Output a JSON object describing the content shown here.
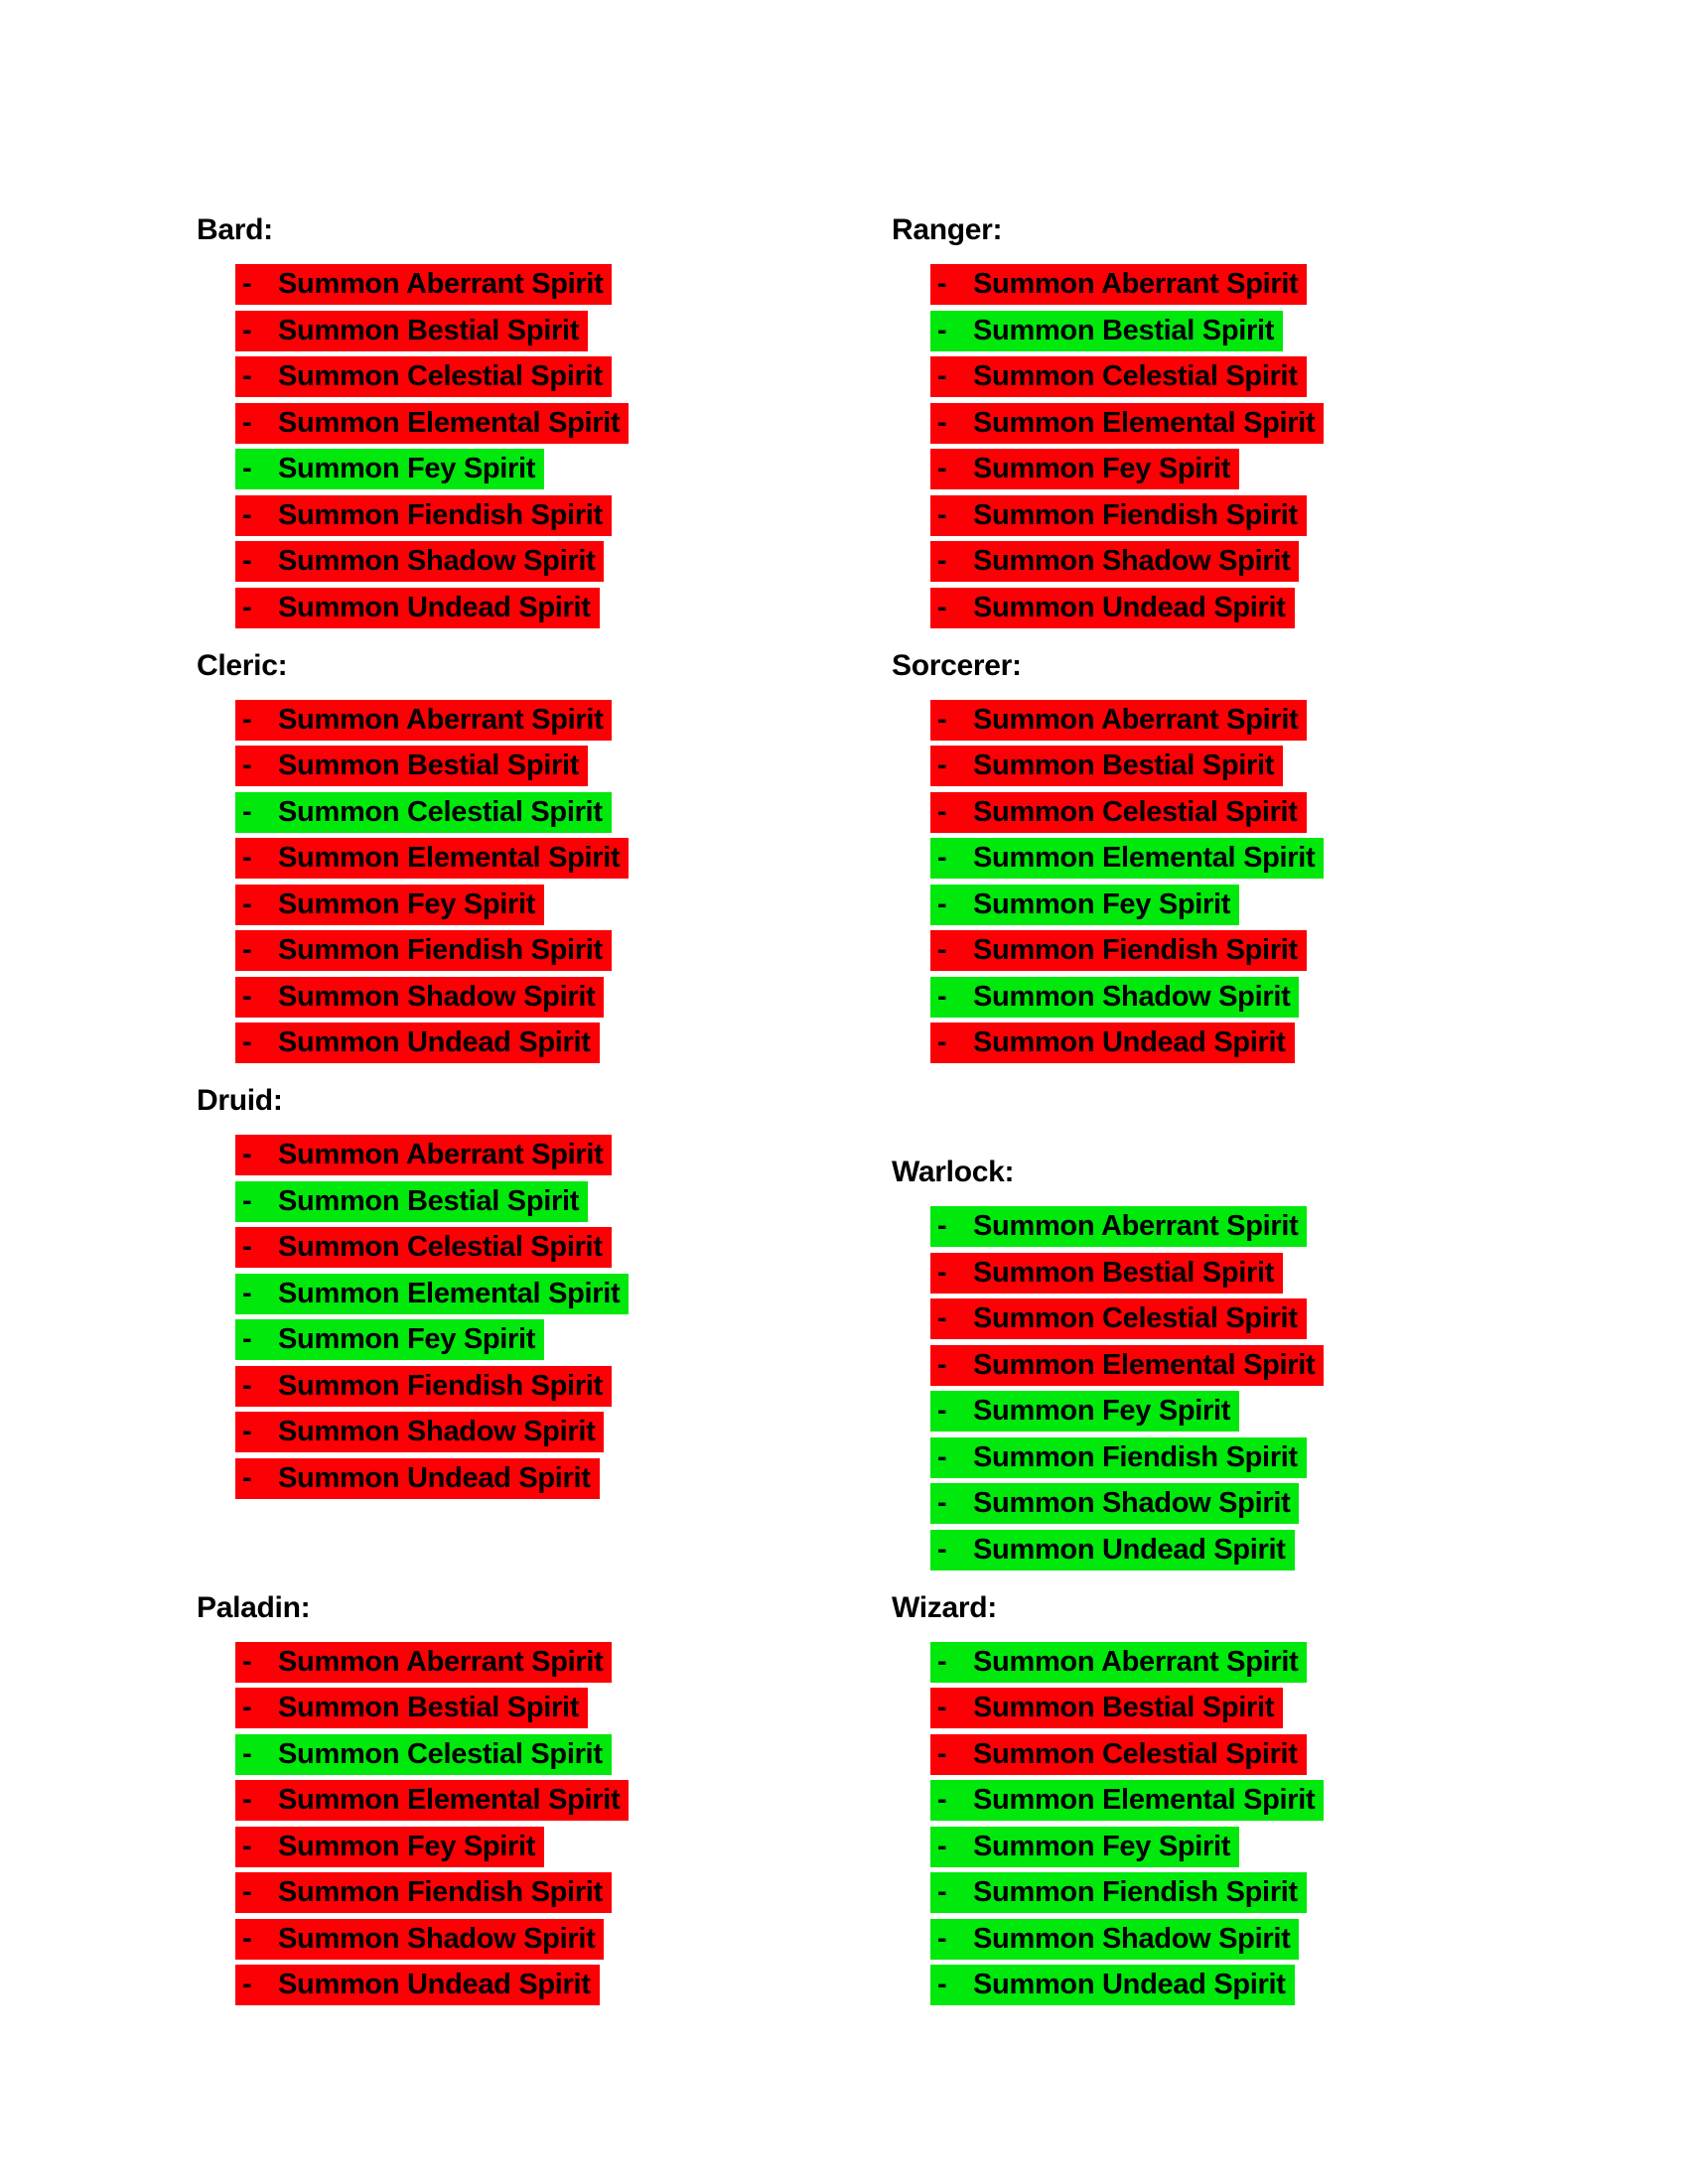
{
  "document": {
    "background_color": "#ffffff",
    "text_color": "#000000",
    "highlight_colors": {
      "red": "#fb0005",
      "green": "#00e80c"
    }
  },
  "glyphs": {
    "dash": "-"
  },
  "columns": {
    "left": [
      "Bard",
      "Cleric",
      "Druid",
      "Paladin"
    ],
    "right": [
      "Ranger",
      "Sorcerer",
      "Warlock",
      "Wizard"
    ]
  },
  "classes": [
    {
      "label": "Bard:",
      "items": [
        {
          "spell": "Summon Aberrant Spirit",
          "status": "red"
        },
        {
          "spell": "Summon Bestial Spirit",
          "status": "red"
        },
        {
          "spell": "Summon Celestial Spirit",
          "status": "red"
        },
        {
          "spell": "Summon Elemental Spirit",
          "status": "red"
        },
        {
          "spell": "Summon Fey Spirit",
          "status": "green"
        },
        {
          "spell": "Summon Fiendish Spirit",
          "status": "red"
        },
        {
          "spell": "Summon Shadow Spirit",
          "status": "red"
        },
        {
          "spell": "Summon Undead Spirit",
          "status": "red"
        }
      ]
    },
    {
      "label": "Cleric:",
      "items": [
        {
          "spell": "Summon Aberrant Spirit",
          "status": "red"
        },
        {
          "spell": "Summon Bestial Spirit",
          "status": "red"
        },
        {
          "spell": "Summon Celestial Spirit",
          "status": "green"
        },
        {
          "spell": "Summon Elemental Spirit",
          "status": "red"
        },
        {
          "spell": "Summon Fey Spirit",
          "status": "red"
        },
        {
          "spell": "Summon Fiendish Spirit",
          "status": "red"
        },
        {
          "spell": "Summon Shadow Spirit",
          "status": "red"
        },
        {
          "spell": "Summon Undead Spirit",
          "status": "red"
        }
      ]
    },
    {
      "label": "Druid:",
      "items": [
        {
          "spell": "Summon Aberrant Spirit",
          "status": "red"
        },
        {
          "spell": "Summon Bestial Spirit",
          "status": "green"
        },
        {
          "spell": "Summon Celestial Spirit",
          "status": "red"
        },
        {
          "spell": "Summon Elemental Spirit",
          "status": "green"
        },
        {
          "spell": "Summon Fey Spirit",
          "status": "green"
        },
        {
          "spell": "Summon Fiendish Spirit",
          "status": "red"
        },
        {
          "spell": "Summon Shadow Spirit",
          "status": "red"
        },
        {
          "spell": "Summon Undead Spirit",
          "status": "red"
        }
      ]
    },
    {
      "label": "Paladin:",
      "items": [
        {
          "spell": "Summon Aberrant Spirit",
          "status": "red"
        },
        {
          "spell": "Summon Bestial Spirit",
          "status": "red"
        },
        {
          "spell": "Summon Celestial Spirit",
          "status": "green"
        },
        {
          "spell": "Summon Elemental Spirit",
          "status": "red"
        },
        {
          "spell": "Summon Fey Spirit",
          "status": "red"
        },
        {
          "spell": "Summon Fiendish Spirit",
          "status": "red"
        },
        {
          "spell": "Summon Shadow Spirit",
          "status": "red"
        },
        {
          "spell": "Summon Undead Spirit",
          "status": "red"
        }
      ]
    },
    {
      "label": "Ranger:",
      "items": [
        {
          "spell": "Summon Aberrant Spirit",
          "status": "red"
        },
        {
          "spell": "Summon Bestial Spirit",
          "status": "green"
        },
        {
          "spell": "Summon Celestial Spirit",
          "status": "red"
        },
        {
          "spell": "Summon Elemental Spirit",
          "status": "red"
        },
        {
          "spell": "Summon Fey Spirit",
          "status": "red"
        },
        {
          "spell": "Summon Fiendish Spirit",
          "status": "red"
        },
        {
          "spell": "Summon Shadow Spirit",
          "status": "red"
        },
        {
          "spell": "Summon Undead Spirit",
          "status": "red"
        }
      ]
    },
    {
      "label": "Sorcerer:",
      "items": [
        {
          "spell": "Summon Aberrant Spirit",
          "status": "red"
        },
        {
          "spell": "Summon Bestial Spirit",
          "status": "red"
        },
        {
          "spell": "Summon Celestial Spirit",
          "status": "red"
        },
        {
          "spell": "Summon Elemental Spirit",
          "status": "green"
        },
        {
          "spell": "Summon Fey Spirit",
          "status": "green"
        },
        {
          "spell": "Summon Fiendish Spirit",
          "status": "red"
        },
        {
          "spell": "Summon Shadow Spirit",
          "status": "green"
        },
        {
          "spell": "Summon Undead Spirit",
          "status": "red"
        }
      ]
    },
    {
      "label": "Warlock:",
      "items": [
        {
          "spell": "Summon Aberrant Spirit",
          "status": "green"
        },
        {
          "spell": "Summon Bestial Spirit",
          "status": "red"
        },
        {
          "spell": "Summon Celestial Spirit",
          "status": "red"
        },
        {
          "spell": "Summon Elemental Spirit",
          "status": "red"
        },
        {
          "spell": "Summon Fey Spirit",
          "status": "green"
        },
        {
          "spell": "Summon Fiendish Spirit",
          "status": "green"
        },
        {
          "spell": "Summon Shadow Spirit",
          "status": "green"
        },
        {
          "spell": "Summon Undead Spirit",
          "status": "green"
        }
      ]
    },
    {
      "label": "Wizard:",
      "items": [
        {
          "spell": "Summon Aberrant Spirit",
          "status": "green"
        },
        {
          "spell": "Summon Bestial Spirit",
          "status": "red"
        },
        {
          "spell": "Summon Celestial Spirit",
          "status": "red"
        },
        {
          "spell": "Summon Elemental Spirit",
          "status": "green"
        },
        {
          "spell": "Summon Fey Spirit",
          "status": "green"
        },
        {
          "spell": "Summon Fiendish Spirit",
          "status": "green"
        },
        {
          "spell": "Summon Shadow Spirit",
          "status": "green"
        },
        {
          "spell": "Summon Undead Spirit",
          "status": "green"
        }
      ]
    }
  ]
}
